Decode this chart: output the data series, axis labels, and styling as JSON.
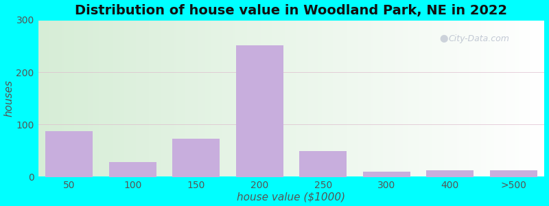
{
  "title": "Distribution of house value in Woodland Park, NE in 2022",
  "xlabel": "house value ($1000)",
  "ylabel": "houses",
  "bar_categories": [
    "50",
    "100",
    "150",
    "200",
    "250",
    "300",
    "400",
    ">500"
  ],
  "bar_values": [
    88,
    28,
    73,
    252,
    50,
    10,
    13,
    13
  ],
  "bar_color": "#c8aedd",
  "ylim": [
    0,
    300
  ],
  "yticks": [
    0,
    100,
    200,
    300
  ],
  "background_outer": "#00FFFF",
  "bg_left_color": "#d6edd6",
  "bg_right_color": "#f0faf0",
  "title_fontsize": 14,
  "axis_label_fontsize": 11,
  "tick_fontsize": 10,
  "watermark": "City-Data.com"
}
